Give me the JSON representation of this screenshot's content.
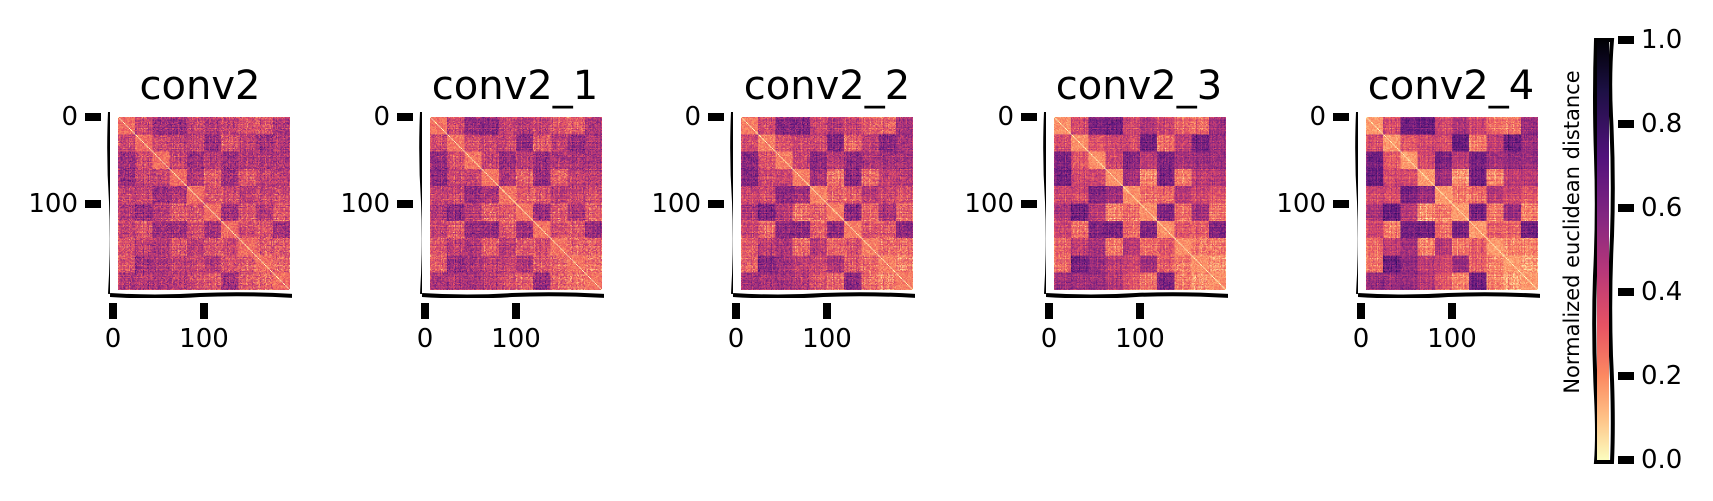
{
  "chart_data": {
    "type": "heatmap",
    "title": "",
    "colormap": "magma_r",
    "matrix_size": 200,
    "num_blocks": 10,
    "block_size": 20,
    "panels": [
      {
        "title": "conv2",
        "xticks": [
          "0",
          "100"
        ],
        "yticks": [
          "0",
          "100"
        ],
        "block_contrast": 0.18,
        "noise": 0.3
      },
      {
        "title": "conv2_1",
        "xticks": [
          "0",
          "100"
        ],
        "yticks": [
          "0",
          "100"
        ],
        "block_contrast": 0.24,
        "noise": 0.28
      },
      {
        "title": "conv2_2",
        "xticks": [
          "0",
          "100"
        ],
        "yticks": [
          "0",
          "100"
        ],
        "block_contrast": 0.3,
        "noise": 0.26
      },
      {
        "title": "conv2_3",
        "xticks": [
          "0",
          "100"
        ],
        "yticks": [
          "0",
          "100"
        ],
        "block_contrast": 0.38,
        "noise": 0.22
      },
      {
        "title": "conv2_4",
        "xticks": [
          "0",
          "100"
        ],
        "yticks": [
          "0",
          "100"
        ],
        "block_contrast": 0.44,
        "noise": 0.2
      }
    ],
    "colorbar": {
      "label": "Normalized euclidean distance",
      "range": [
        0.0,
        1.0
      ],
      "ticks": [
        "1.0",
        "0.8",
        "0.6",
        "0.4",
        "0.2",
        "0.0"
      ],
      "tick_values": [
        1.0,
        0.8,
        0.6,
        0.4,
        0.2,
        0.0
      ]
    },
    "colors": {
      "low": "#fcfdbf",
      "mid_low": "#fc8961",
      "mid": "#b73779",
      "mid_high": "#51127c",
      "high": "#000004"
    },
    "layout": {
      "grid": false,
      "legend_position": "right",
      "xlim": [
        0,
        200
      ],
      "ylim": [
        200,
        0
      ]
    }
  }
}
